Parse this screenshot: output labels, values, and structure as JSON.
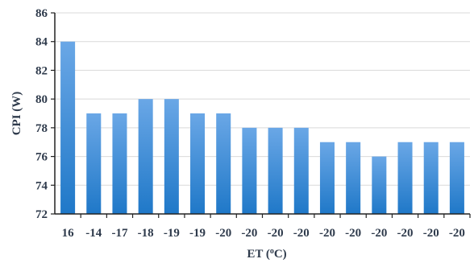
{
  "chart_data": {
    "type": "bar",
    "title": "",
    "xlabel": "ET (oC)",
    "ylabel": "CPI (W)",
    "categories": [
      "16",
      "-14",
      "-17",
      "-18",
      "-19",
      "-19",
      "-20",
      "-20",
      "-20",
      "-20",
      "-20",
      "-20",
      "-20",
      "-20",
      "-20",
      "-20"
    ],
    "values": [
      84,
      79,
      79,
      80,
      80,
      79,
      79,
      78,
      78,
      78,
      77,
      77,
      76,
      77,
      77,
      77
    ],
    "ylim": [
      72,
      86
    ],
    "yticks": [
      72,
      74,
      76,
      78,
      80,
      82,
      84,
      86
    ],
    "grid": true,
    "bar_color_top": "#6aa7e6",
    "bar_color_bottom": "#1f78c8"
  }
}
